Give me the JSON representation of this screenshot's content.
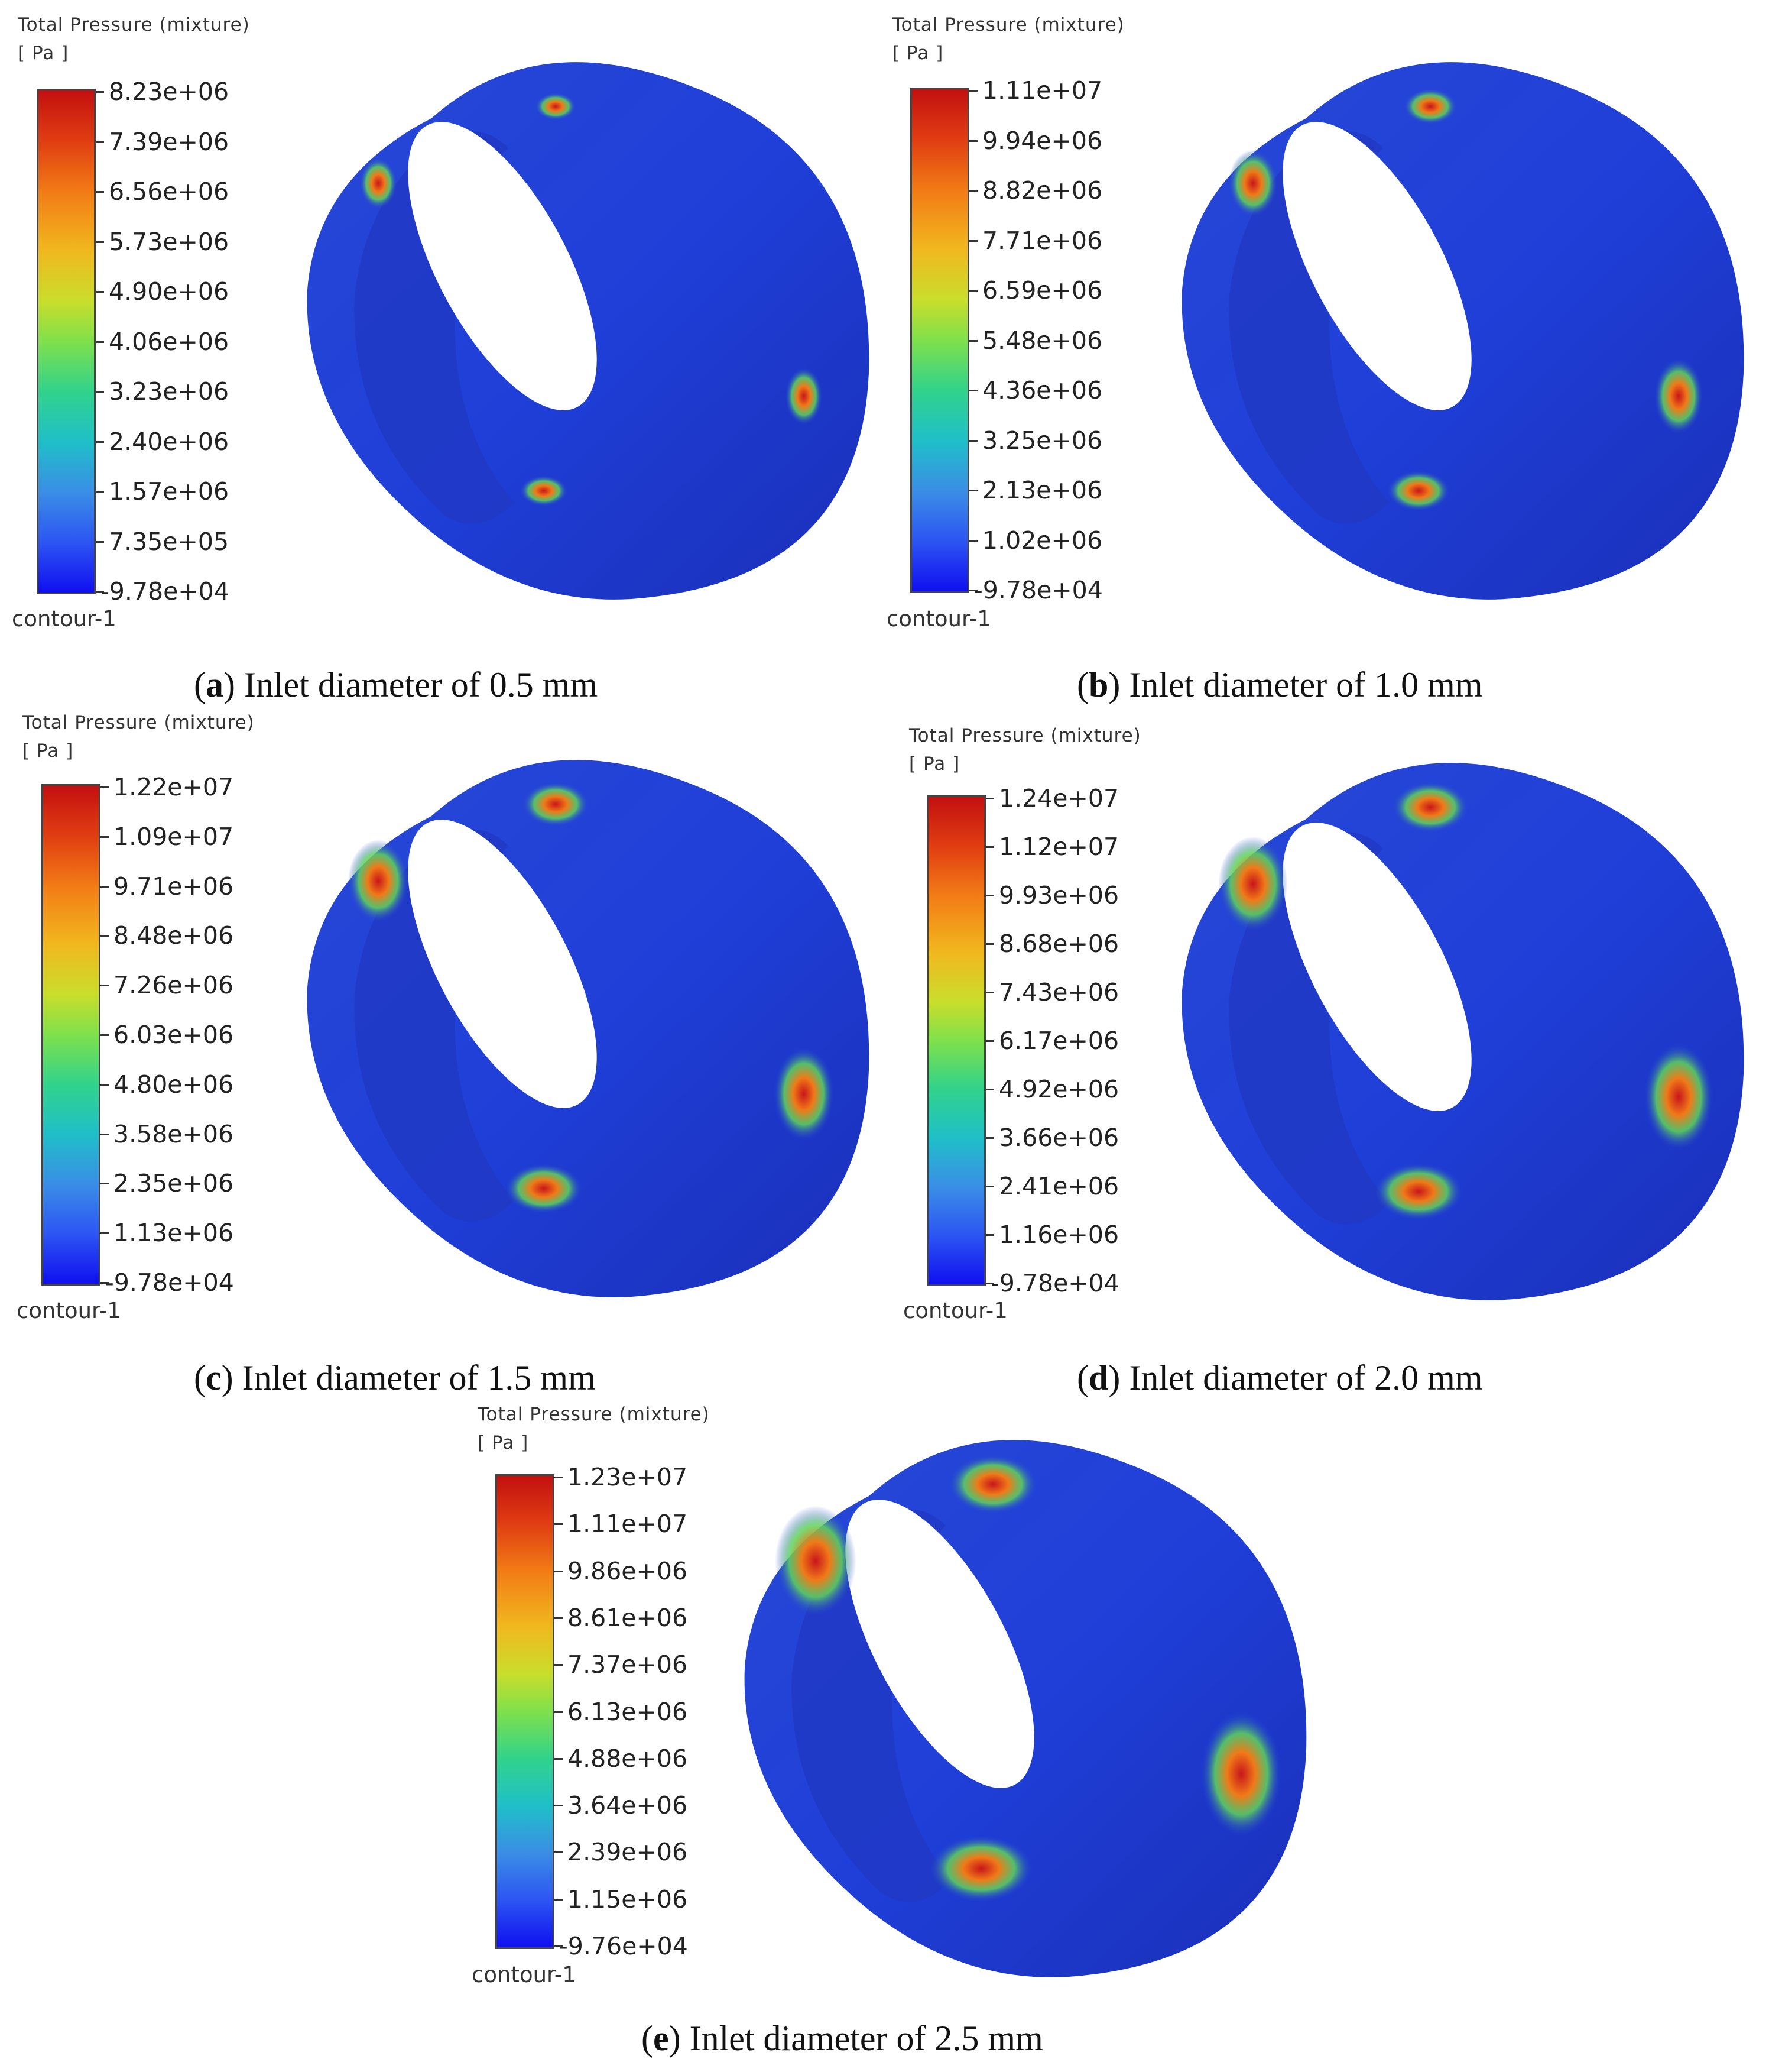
{
  "colors": {
    "band_blue": "#1f3fd8",
    "band_dark": "#1a2fb8",
    "hotspot_red": "#c8161a",
    "hotspot_orange": "#f07a18",
    "hotspot_green": "#5fd55a"
  },
  "panels": [
    {
      "id": "a",
      "legend_title": "Total Pressure (mixture)",
      "legend_unit": "[ Pa ]",
      "ticks": [
        "8.23e+06",
        "7.39e+06",
        "6.56e+06",
        "5.73e+06",
        "4.90e+06",
        "4.06e+06",
        "3.23e+06",
        "2.40e+06",
        "1.57e+06",
        "7.35e+05",
        "-9.78e+04"
      ],
      "legend_footer": "contour-1",
      "caption_letter": "a",
      "caption_text": "Inlet diameter of 0.5 mm",
      "hotspot_intensity": 0.25
    },
    {
      "id": "b",
      "legend_title": "Total Pressure (mixture)",
      "legend_unit": "[ Pa ]",
      "ticks": [
        "1.11e+07",
        "9.94e+06",
        "8.82e+06",
        "7.71e+06",
        "6.59e+06",
        "5.48e+06",
        "4.36e+06",
        "3.25e+06",
        "2.13e+06",
        "1.02e+06",
        "-9.78e+04"
      ],
      "legend_footer": "contour-1",
      "caption_letter": "b",
      "caption_text": "Inlet diameter of 1.0 mm",
      "hotspot_intensity": 0.45
    },
    {
      "id": "c",
      "legend_title": "Total Pressure (mixture)",
      "legend_unit": "[ Pa ]",
      "ticks": [
        "1.22e+07",
        "1.09e+07",
        "9.71e+06",
        "8.48e+06",
        "7.26e+06",
        "6.03e+06",
        "4.80e+06",
        "3.58e+06",
        "2.35e+06",
        "1.13e+06",
        "-9.78e+04"
      ],
      "legend_footer": "contour-1",
      "caption_letter": "c",
      "caption_text": "Inlet diameter of 1.5 mm",
      "hotspot_intensity": 0.65
    },
    {
      "id": "d",
      "legend_title": "Total Pressure (mixture)",
      "legend_unit": "[ Pa ]",
      "ticks": [
        "1.24e+07",
        "1.12e+07",
        "9.93e+06",
        "8.68e+06",
        "7.43e+06",
        "6.17e+06",
        "4.92e+06",
        "3.66e+06",
        "2.41e+06",
        "1.16e+06",
        "-9.78e+04"
      ],
      "legend_footer": "contour-1",
      "caption_letter": "d",
      "caption_text": "Inlet diameter of 2.0 mm",
      "hotspot_intensity": 0.8
    },
    {
      "id": "e",
      "legend_title": "Total Pressure (mixture)",
      "legend_unit": "[ Pa ]",
      "ticks": [
        "1.23e+07",
        "1.11e+07",
        "9.86e+06",
        "8.61e+06",
        "7.37e+06",
        "6.13e+06",
        "4.88e+06",
        "3.64e+06",
        "2.39e+06",
        "1.15e+06",
        "-9.76e+04"
      ],
      "legend_footer": "contour-1",
      "caption_letter": "e",
      "caption_text": "Inlet diameter of 2.5 mm",
      "hotspot_intensity": 1.0
    }
  ]
}
